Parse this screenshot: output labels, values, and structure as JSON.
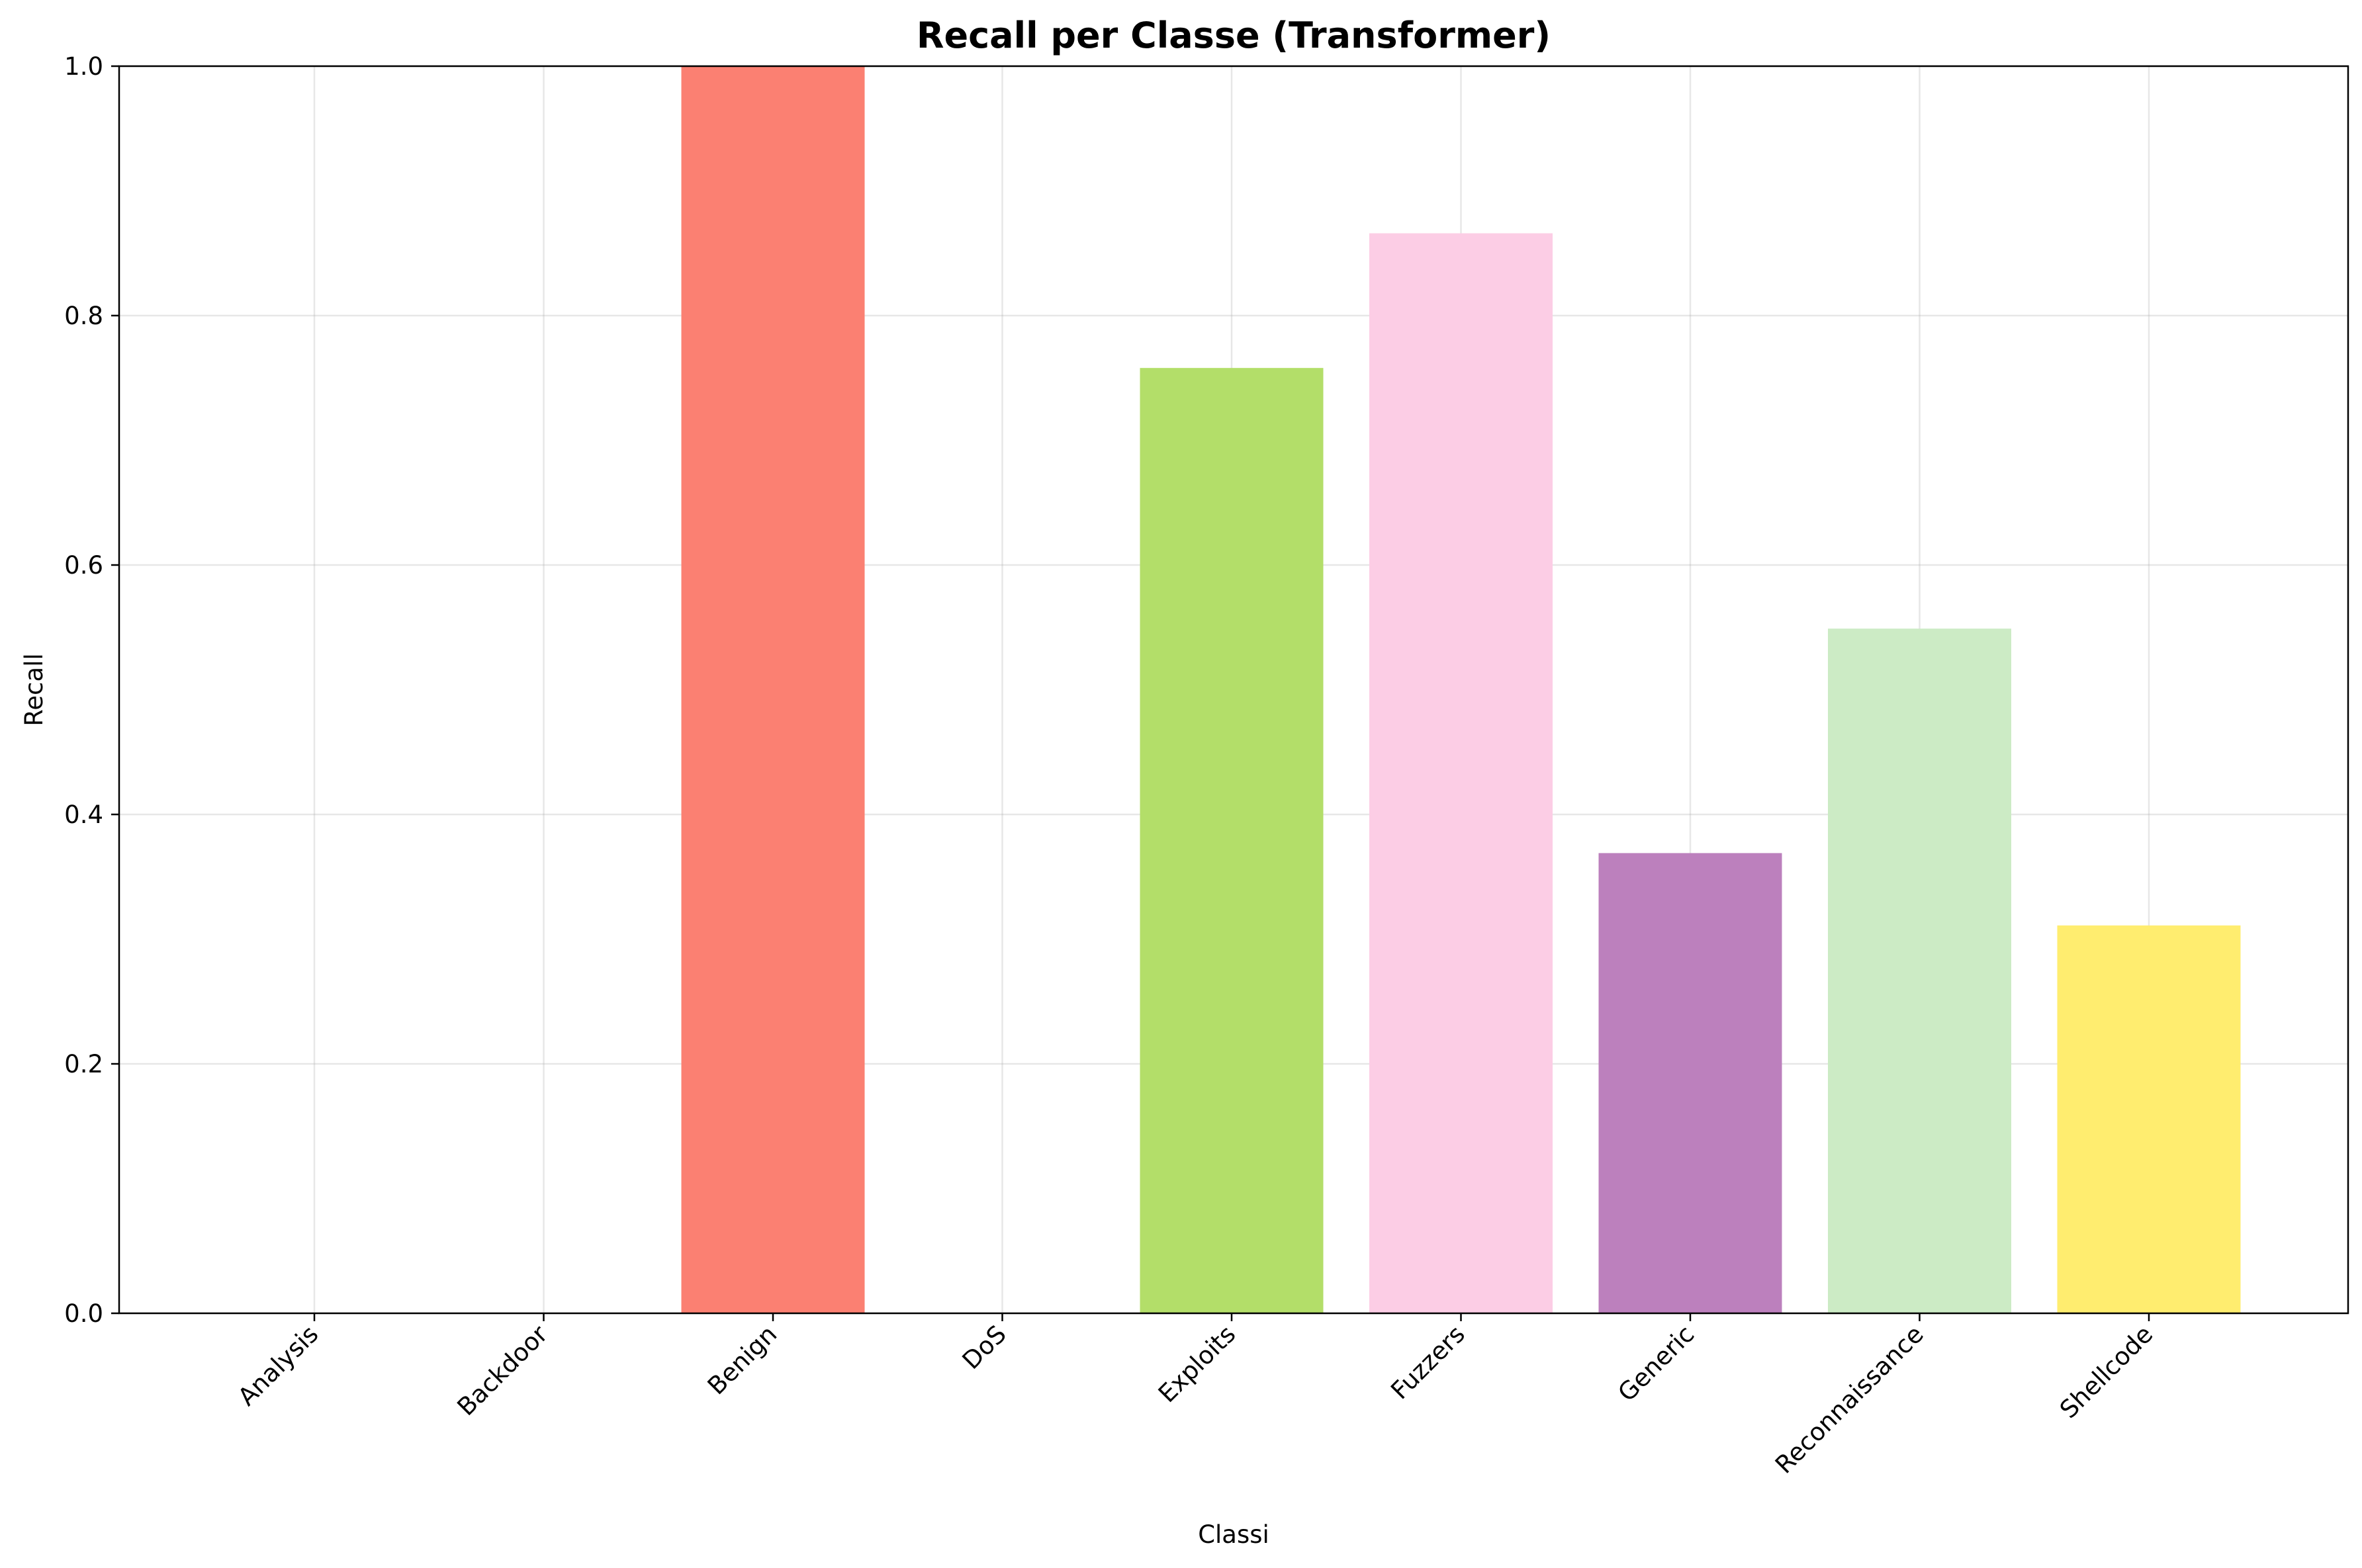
{
  "chart_data": {
    "type": "bar",
    "title": "Recall per Classe (Transformer)",
    "xlabel": "Classi",
    "ylabel": "Recall",
    "ylim": [
      0,
      1.0
    ],
    "yticks": [
      0.0,
      0.2,
      0.4,
      0.6,
      0.8,
      1.0
    ],
    "ytick_labels": [
      "0.0",
      "0.2",
      "0.4",
      "0.6",
      "0.8",
      "1.0"
    ],
    "grid": true,
    "categories": [
      "Analysis",
      "Backdoor",
      "Benign",
      "DoS",
      "Exploits",
      "Fuzzers",
      "Generic",
      "Reconnaissance",
      "Shellcode"
    ],
    "values": [
      0.0,
      0.0,
      1.0,
      0.0,
      0.758,
      0.866,
      0.369,
      0.549,
      0.311
    ],
    "colors": [
      "#8dd3c7",
      "#ffffb3",
      "#fb8072",
      "#bebada",
      "#b3de69",
      "#fccde5",
      "#bc80bd",
      "#ccebc5",
      "#ffed6f"
    ]
  }
}
